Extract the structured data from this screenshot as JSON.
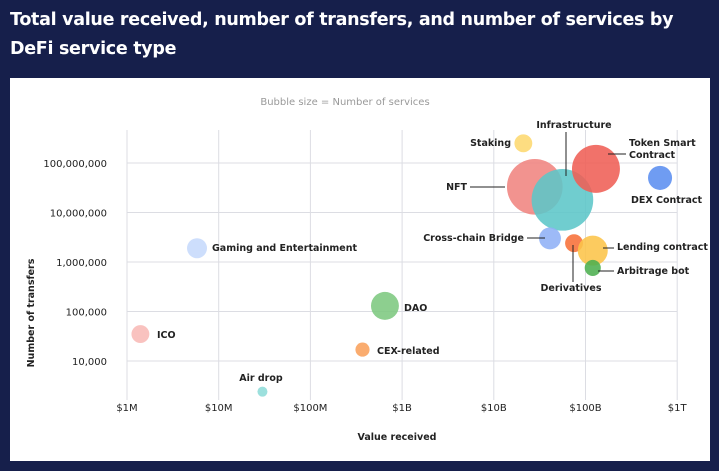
{
  "title": "Total value received, number of transfers, and number of services by DeFi service type",
  "chart_data": {
    "type": "scatter",
    "subtitle": "Bubble size = Number of services",
    "xlabel": "Value received",
    "ylabel": "Number of transfers",
    "x_scale": "log",
    "y_scale": "log",
    "xlim": [
      1000000,
      1000000000000
    ],
    "ylim": [
      1500,
      700000000
    ],
    "x_ticks": [
      {
        "value": 1000000,
        "label": "$1M"
      },
      {
        "value": 10000000,
        "label": "$10M"
      },
      {
        "value": 100000000,
        "label": "$100M"
      },
      {
        "value": 1000000000,
        "label": "$1B"
      },
      {
        "value": 10000000000,
        "label": "$10B"
      },
      {
        "value": 100000000000,
        "label": "$100B"
      },
      {
        "value": 1000000000000,
        "label": "$1T"
      }
    ],
    "y_ticks": [
      {
        "value": 10000,
        "label": "10,000"
      },
      {
        "value": 100000,
        "label": "100,000"
      },
      {
        "value": 1000000,
        "label": "1,000,000"
      },
      {
        "value": 10000000,
        "label": "10,000,000"
      },
      {
        "value": 100000000,
        "label": "100,000,000"
      }
    ],
    "grid": true,
    "points": [
      {
        "name": "NFT",
        "x": 28000000000,
        "y": 33000000,
        "size": 31,
        "color": "#f08480"
      },
      {
        "name": "Infrastructure",
        "x": 56000000000,
        "y": 18000000,
        "size": 38,
        "color": "#5cc6c8"
      },
      {
        "name": "Staking",
        "x": 21000000000,
        "y": 250000000,
        "size": 3.2,
        "color": "#fdd870"
      },
      {
        "name": "Token Smart Contract",
        "x": 130000000000,
        "y": 76000000,
        "size": 23,
        "color": "#ef5e55"
      },
      {
        "name": "DEX Contract",
        "x": 650000000000,
        "y": 50000000,
        "size": 5.8,
        "color": "#5b8ef0"
      },
      {
        "name": "Cross-chain Bridge",
        "x": 41000000000,
        "y": 3000000,
        "size": 4.8,
        "color": "#8fb1f6"
      },
      {
        "name": "Derivatives",
        "x": 75000000000,
        "y": 2400000,
        "size": 3.2,
        "color": "#f76f38"
      },
      {
        "name": "Lending contract",
        "x": 120000000000,
        "y": 1700000,
        "size": 9,
        "color": "#fcc449"
      },
      {
        "name": "Arbitrage bot",
        "x": 120000000000,
        "y": 760000,
        "size": 2.6,
        "color": "#4caf50"
      },
      {
        "name": "Gaming and Entertainment",
        "x": 5800000,
        "y": 1900000,
        "size": 4,
        "color": "#c6d9fc"
      },
      {
        "name": "DAO",
        "x": 650000000,
        "y": 130000,
        "size": 7.8,
        "color": "#7dc87f"
      },
      {
        "name": "ICO",
        "x": 1400000,
        "y": 35000,
        "size": 3.2,
        "color": "#f8b9b6"
      },
      {
        "name": "CEX-related",
        "x": 370000000,
        "y": 17000,
        "size": 2,
        "color": "#f9a15b"
      },
      {
        "name": "Air drop",
        "x": 30000000,
        "y": 2400,
        "size": 1,
        "color": "#8edcd8"
      }
    ]
  }
}
